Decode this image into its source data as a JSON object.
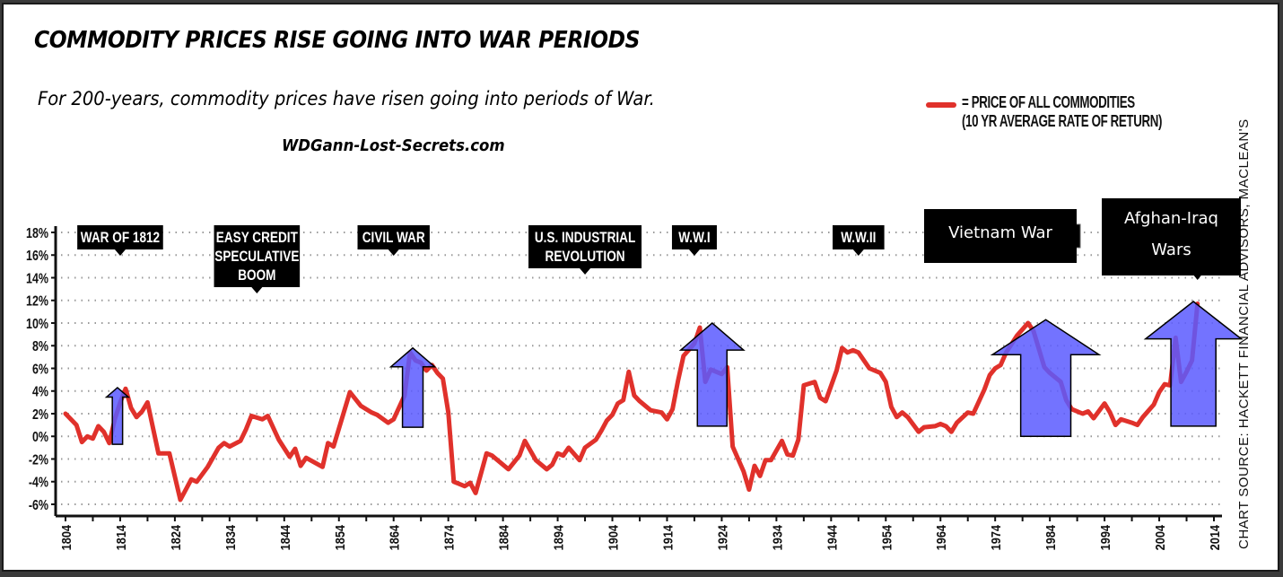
{
  "header": {
    "title": "COMMODITY PRICES RISE GOING INTO WAR PERIODS",
    "subtitle": "For 200-years, commodity prices have risen going into periods of War.",
    "website": "WDGann-Lost-Secrets.com"
  },
  "legend": {
    "line1": "= PRICE OF ALL COMMODITIES",
    "line2": "(10 YR AVERAGE RATE OF RETURN)",
    "color": "#e0312b"
  },
  "source": "CHART SOURCE: HACKETT FINANCIAL ADVISORS, MACLEAN'S",
  "chart_data": {
    "type": "line",
    "title": "COMMODITY PRICES RISE GOING INTO WAR PERIODS",
    "xlabel": "",
    "ylabel": "",
    "xlim": [
      1804,
      2014
    ],
    "ylim": [
      -6,
      18
    ],
    "grid": true,
    "legend_position": "top-right",
    "x_ticks": [
      1804,
      1814,
      1824,
      1834,
      1844,
      1854,
      1864,
      1874,
      1884,
      1894,
      1904,
      1914,
      1924,
      1934,
      1944,
      1954,
      1964,
      1974,
      1984,
      1994,
      2004,
      2014
    ],
    "x_tick_labels": [
      "1804",
      "1814",
      "1824",
      "1834",
      "1844",
      "1854",
      "1864",
      "1874",
      "1884",
      "1894",
      "1904",
      "1914",
      "1924",
      "1934",
      "1944",
      "1954",
      "1964",
      "1974",
      "1984",
      "1994",
      "2004",
      "2014"
    ],
    "y_ticks": [
      18,
      16,
      14,
      12,
      10,
      8,
      6,
      4,
      2,
      0,
      -2,
      -4,
      -6
    ],
    "y_tick_labels": [
      "18%",
      "16%",
      "14%",
      "12%",
      "10%",
      "8%",
      "6%",
      "4%",
      "2%",
      "0%",
      "-2%",
      "-4%",
      "-6%"
    ],
    "series": [
      {
        "name": "Price of all commodities (10 yr average rate of return)",
        "color": "#e0312b",
        "x": [
          1804,
          1806,
          1807,
          1808,
          1809,
          1810,
          1811,
          1812,
          1813,
          1814,
          1815,
          1816,
          1817,
          1818,
          1819,
          1821,
          1823,
          1825,
          1827,
          1828,
          1830,
          1832,
          1833,
          1834,
          1836,
          1837,
          1838,
          1840,
          1841,
          1843,
          1845,
          1846,
          1847,
          1848,
          1851,
          1852,
          1853,
          1856,
          1858,
          1860,
          1861,
          1863,
          1864,
          1866,
          1867,
          1868,
          1869,
          1870,
          1871,
          1872,
          1873,
          1874,
          1875,
          1877,
          1878,
          1879,
          1881,
          1882,
          1885,
          1887,
          1888,
          1890,
          1892,
          1893,
          1894,
          1895,
          1896,
          1898,
          1899,
          1901,
          1902,
          1903,
          1904,
          1905,
          1906,
          1907,
          1908,
          1909,
          1911,
          1913,
          1914,
          1915,
          1916,
          1917,
          1919,
          1920,
          1921,
          1922,
          1924,
          1925,
          1926,
          1928,
          1929,
          1930,
          1931,
          1932,
          1933,
          1935,
          1936,
          1937,
          1938,
          1939,
          1941,
          1942,
          1943,
          1945,
          1946,
          1947,
          1948,
          1949,
          1951,
          1953,
          1954,
          1955,
          1956,
          1957,
          1958,
          1960,
          1961,
          1963,
          1964,
          1965,
          1966,
          1967,
          1969,
          1970,
          1972,
          1973,
          1974,
          1975,
          1976,
          1978,
          1980,
          1981,
          1983,
          1984,
          1986,
          1987,
          1988,
          1990,
          1991,
          1992,
          1994,
          1995,
          1996,
          1997,
          1999,
          2000,
          2001,
          2003,
          2004,
          2005,
          2006,
          2007,
          2008,
          2009,
          2010,
          2011
        ],
        "y": [
          2.0,
          1.0,
          -0.5,
          0.0,
          -0.2,
          0.9,
          0.4,
          -0.6,
          1.5,
          3.0,
          4.2,
          2.5,
          1.7,
          2.2,
          3.0,
          -1.5,
          -1.5,
          -5.6,
          -3.8,
          -4.0,
          -2.7,
          -1.0,
          -0.6,
          -0.9,
          -0.4,
          0.6,
          1.8,
          1.5,
          1.8,
          -0.3,
          -1.8,
          -1.1,
          -2.6,
          -1.9,
          -2.7,
          -0.6,
          -0.9,
          3.9,
          2.7,
          2.1,
          1.9,
          1.2,
          1.5,
          3.6,
          7.4,
          6.7,
          6.5,
          5.8,
          6.3,
          5.6,
          5.1,
          2.1,
          -4.0,
          -4.4,
          -4.1,
          -5.0,
          -1.5,
          -1.7,
          -2.9,
          -1.7,
          -0.4,
          -2.1,
          -2.9,
          -2.5,
          -1.5,
          -1.7,
          -1.0,
          -2.1,
          -1.0,
          -0.3,
          0.5,
          1.4,
          1.9,
          2.9,
          3.2,
          5.7,
          3.6,
          3.1,
          2.3,
          2.1,
          1.5,
          2.4,
          4.9,
          7.1,
          8.2,
          9.6,
          4.8,
          5.9,
          5.5,
          6.1,
          -0.9,
          -3.1,
          -4.7,
          -2.6,
          -3.5,
          -2.1,
          -2.1,
          -0.4,
          -1.6,
          -1.7,
          -0.3,
          4.5,
          4.8,
          3.4,
          3.1,
          5.8,
          7.8,
          7.4,
          7.6,
          7.4,
          6.0,
          5.6,
          4.8,
          2.6,
          1.7,
          2.1,
          1.7,
          0.4,
          0.8,
          0.9,
          1.1,
          0.9,
          0.4,
          1.2,
          2.1,
          2.0,
          4.1,
          5.4,
          6.0,
          6.3,
          7.4,
          8.9,
          10.0,
          9.3,
          6.1,
          5.6,
          4.8,
          3.2,
          2.4,
          2.0,
          2.2,
          1.6,
          2.9,
          2.1,
          1.0,
          1.5,
          1.2,
          1.0,
          1.7,
          2.8,
          3.9,
          4.6,
          4.5,
          8.7,
          4.8,
          5.7,
          6.7,
          11.7
        ]
      }
    ],
    "annotations": [
      {
        "label": [
          "WAR OF 1812"
        ],
        "year": 1814,
        "style": "original"
      },
      {
        "label": [
          "EASY CREDIT",
          "SPECULATIVE",
          "BOOM"
        ],
        "year": 1839,
        "style": "original"
      },
      {
        "label": [
          "CIVIL WAR"
        ],
        "year": 1864,
        "style": "original"
      },
      {
        "label": [
          "U.S. INDUSTRIAL",
          "REVOLUTION"
        ],
        "year": 1899,
        "style": "original"
      },
      {
        "label": [
          "W.W.I"
        ],
        "year": 1919,
        "style": "original"
      },
      {
        "label": [
          "W.W.II"
        ],
        "year": 1949,
        "style": "original"
      },
      {
        "label": [
          "Vietnam War"
        ],
        "year": 1978,
        "style": "overlay"
      },
      {
        "label": [
          "Afghan-Iraq",
          "Wars"
        ],
        "year": 2011,
        "style": "overlay"
      }
    ],
    "war_arrows": [
      {
        "name": "war-of-1812",
        "x_from": 1811.5,
        "x_to": 1815.5,
        "y_base": -0.7,
        "y_tip": 4.3
      },
      {
        "name": "civil-war",
        "x_from": 1863.5,
        "x_to": 1871.5,
        "y_base": 0.8,
        "y_tip": 7.8
      },
      {
        "name": "wwi",
        "x_from": 1916.5,
        "x_to": 1928,
        "y_base": 0.9,
        "y_tip": 10.0
      },
      {
        "name": "vietnam-war",
        "x_from": 1973.5,
        "x_to": 1993,
        "y_base": 0.0,
        "y_tip": 10.3
      },
      {
        "name": "afghan-iraq-wars",
        "x_from": 2001.5,
        "x_to": 2019,
        "y_base": 0.9,
        "y_tip": 11.9
      }
    ],
    "arrow_color": "#5a5aff"
  }
}
